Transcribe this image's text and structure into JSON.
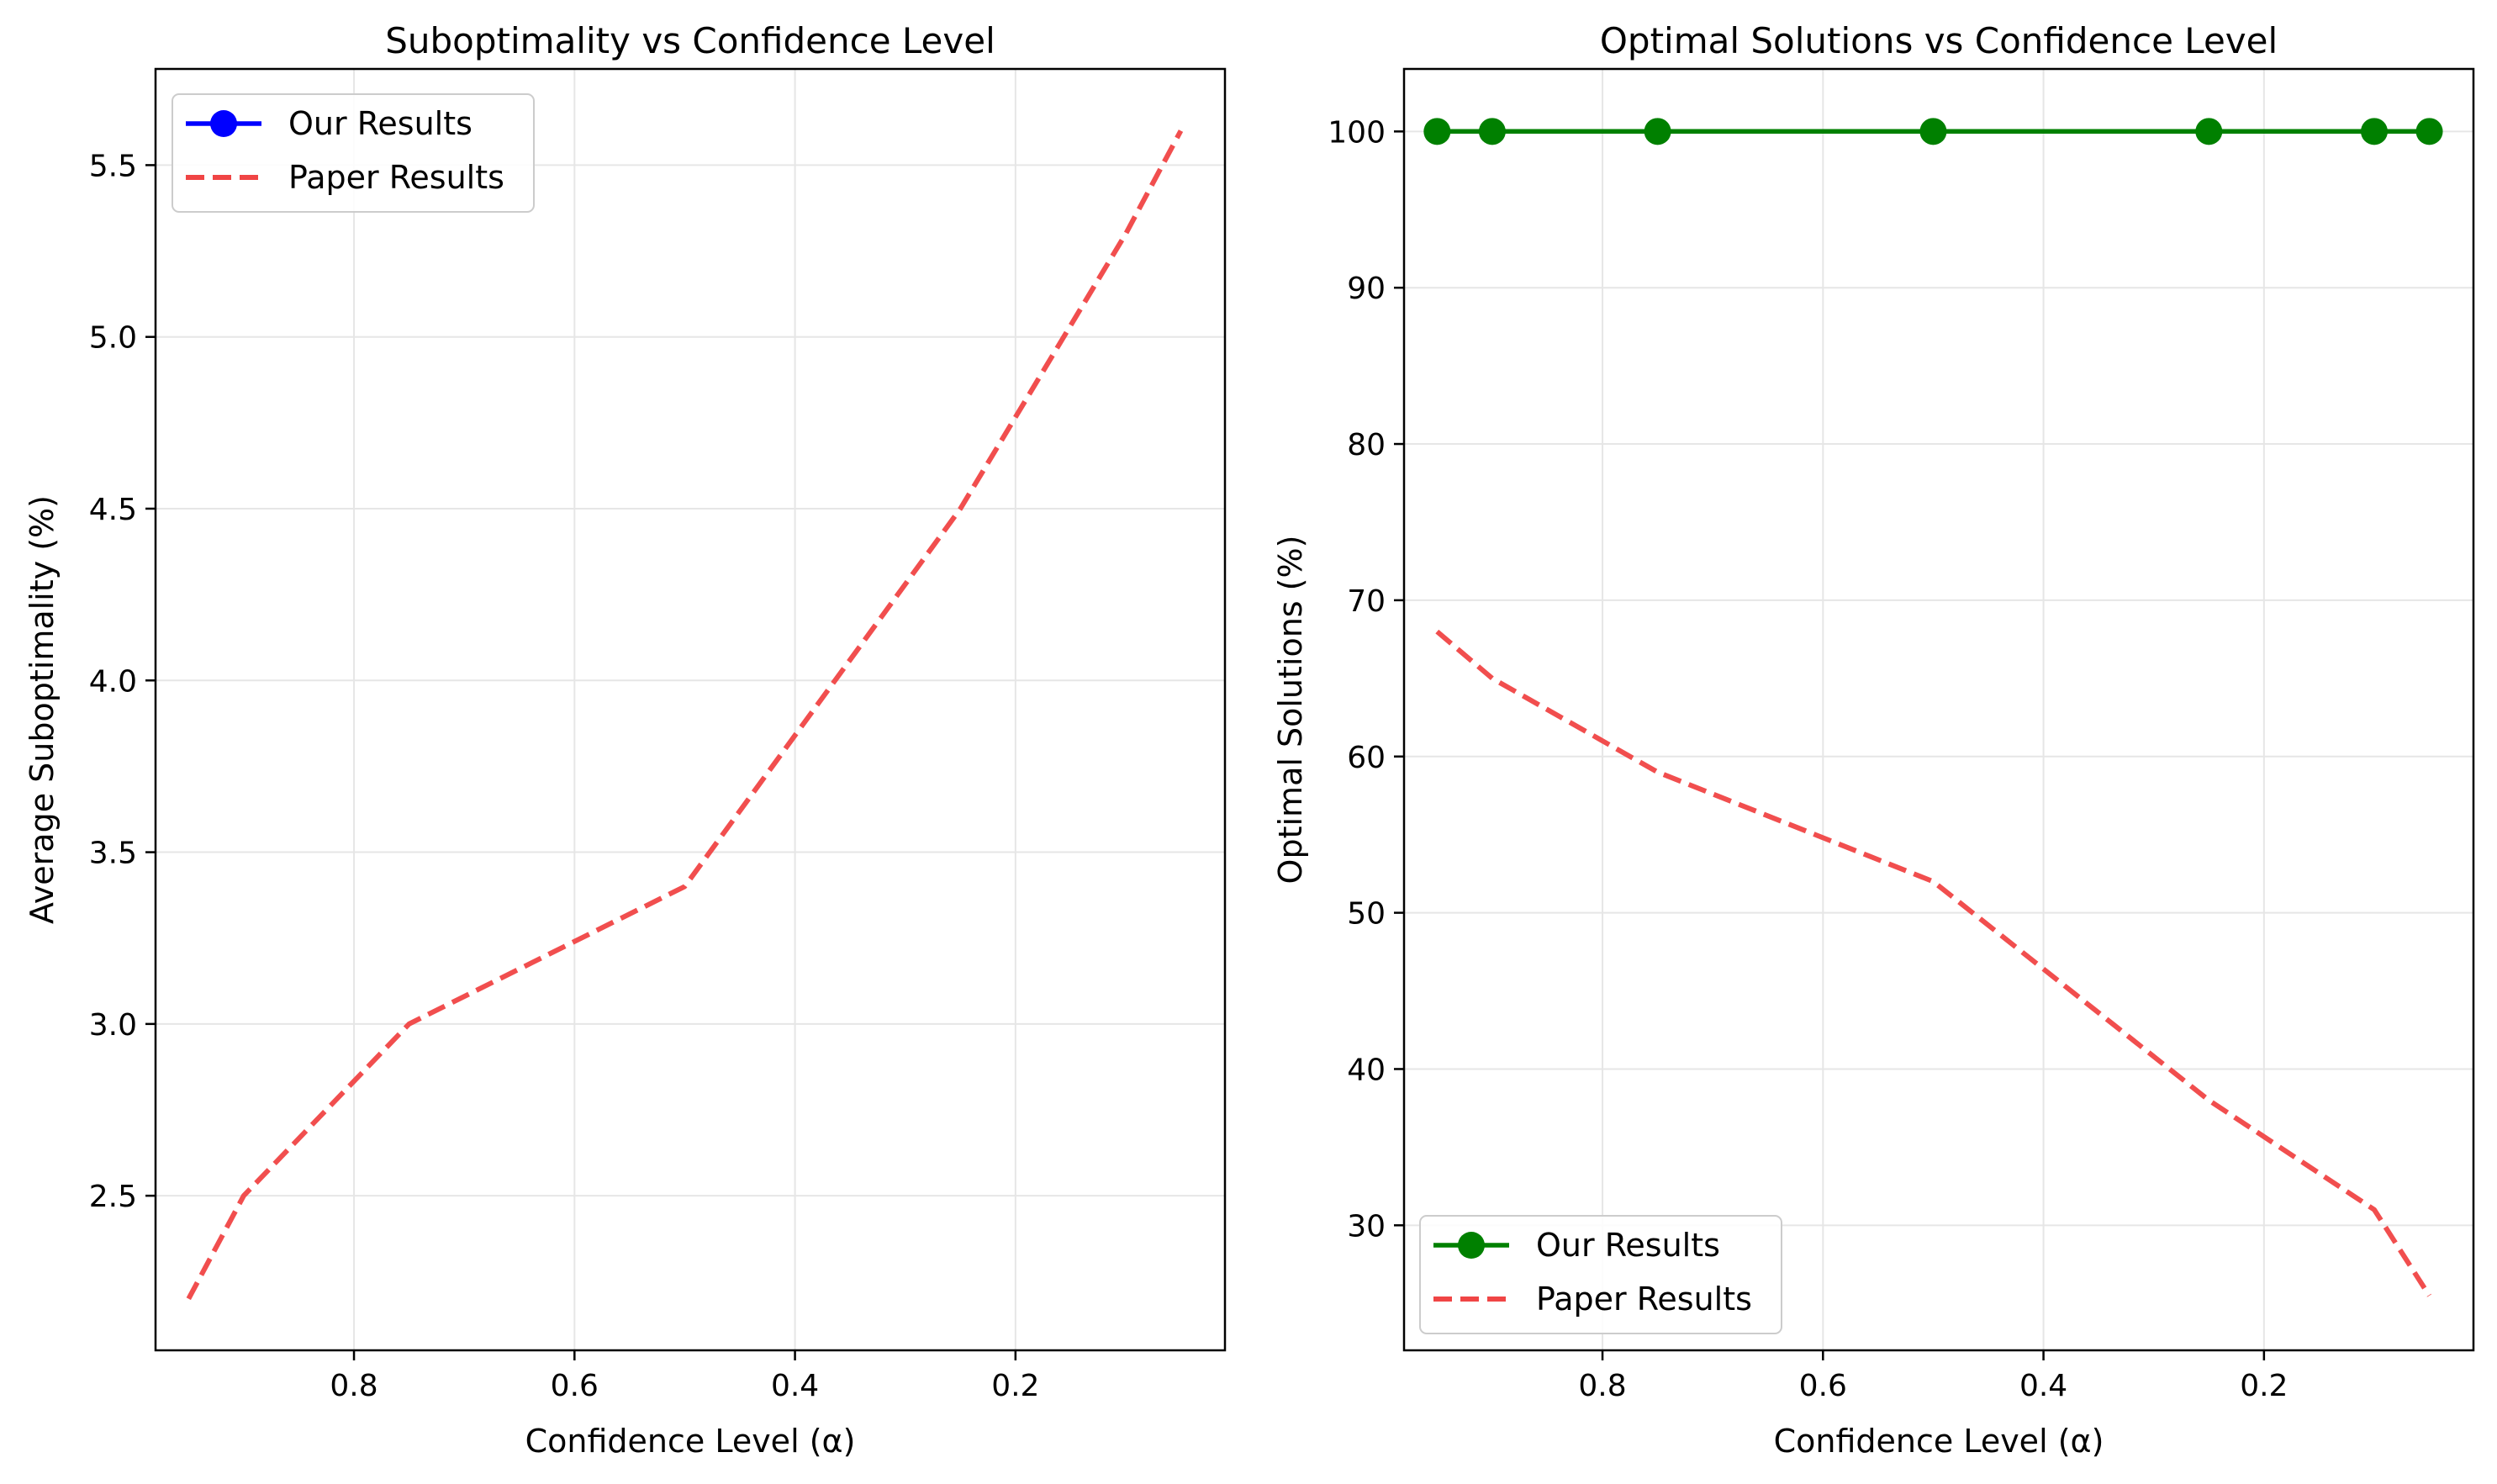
{
  "chart_data": [
    {
      "type": "line",
      "title": "Suboptimality vs Confidence Level",
      "xlabel": "Confidence Level (α)",
      "ylabel": "Average Suboptimality (%)",
      "xlim": [
        0.98,
        0.01
      ],
      "ylim": [
        2.05,
        5.78
      ],
      "x_inverted": true,
      "xticks": [
        0.8,
        0.6,
        0.4,
        0.2
      ],
      "xtick_labels": [
        "0.8",
        "0.6",
        "0.4",
        "0.2"
      ],
      "yticks": [
        2.5,
        3.0,
        3.5,
        4.0,
        4.5,
        5.0,
        5.5
      ],
      "ytick_labels": [
        "2.5",
        "3.0",
        "3.5",
        "4.0",
        "4.5",
        "5.0",
        "5.5"
      ],
      "grid": true,
      "legend_position": "upper-left",
      "series": [
        {
          "name": "Our Results",
          "color": "#0000ff",
          "style": "solid-marker",
          "x": [],
          "y": []
        },
        {
          "name": "Paper Results",
          "color": "#f04545",
          "style": "dashed",
          "x": [
            0.95,
            0.9,
            0.75,
            0.5,
            0.25,
            0.1,
            0.05
          ],
          "y": [
            2.2,
            2.5,
            3.0,
            3.4,
            4.5,
            5.3,
            5.6
          ]
        }
      ]
    },
    {
      "type": "line",
      "title": "Optimal Solutions vs Confidence Level",
      "xlabel": "Confidence Level (α)",
      "ylabel": "Optimal Solutions (%)",
      "xlim": [
        0.98,
        0.01
      ],
      "ylim": [
        22,
        104
      ],
      "x_inverted": true,
      "xticks": [
        0.8,
        0.6,
        0.4,
        0.2
      ],
      "xtick_labels": [
        "0.8",
        "0.6",
        "0.4",
        "0.2"
      ],
      "yticks": [
        30,
        40,
        50,
        60,
        70,
        80,
        90,
        100
      ],
      "ytick_labels": [
        "30",
        "40",
        "50",
        "60",
        "70",
        "80",
        "90",
        "100"
      ],
      "grid": true,
      "legend_position": "lower-left",
      "series": [
        {
          "name": "Our Results",
          "color": "#008000",
          "style": "solid-marker",
          "x": [
            0.95,
            0.9,
            0.75,
            0.5,
            0.25,
            0.1,
            0.05
          ],
          "y": [
            100,
            100,
            100,
            100,
            100,
            100,
            100
          ]
        },
        {
          "name": "Paper Results",
          "color": "#f04545",
          "style": "dashed",
          "x": [
            0.95,
            0.9,
            0.75,
            0.5,
            0.25,
            0.1,
            0.05
          ],
          "y": [
            68,
            65,
            59,
            52,
            38,
            31,
            25.5
          ]
        }
      ]
    }
  ]
}
